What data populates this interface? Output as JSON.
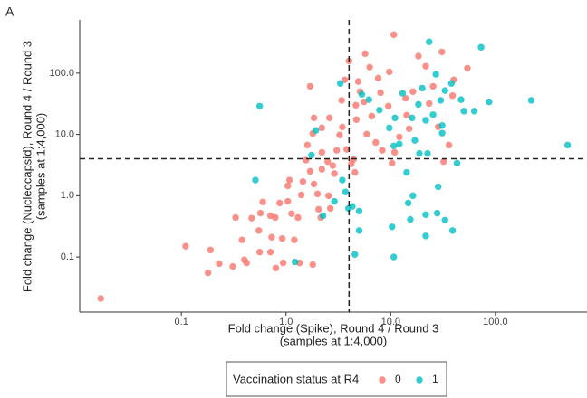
{
  "chart_data": {
    "type": "scatter",
    "panel_label": "A",
    "x_label": [
      "Fold change (Spike), Round 4 / Round 3",
      "(samples at 1:4,000)"
    ],
    "y_label": [
      "Fold change (Nucleocapsid), Round 4 / Round 3",
      "(samples at 1:4,000)"
    ],
    "log_x": true,
    "log_y": true,
    "xlim": [
      0.0107,
      750
    ],
    "ylim": [
      0.0126,
      740
    ],
    "xticks": [
      0.1,
      {
        "value": 1,
        "label": "1.0"
      },
      {
        "value": 10,
        "label": "10.0"
      },
      {
        "value": 100,
        "label": "100.0"
      }
    ],
    "yticks": [
      0.1,
      {
        "value": 1,
        "label": "1.0"
      },
      {
        "value": 10,
        "label": "10.0"
      },
      {
        "value": 100,
        "label": "100.0"
      }
    ],
    "x_ref_line": 4,
    "y_ref_line": 4,
    "legend_title": "Vaccination status at R4",
    "legend_position": "bottom",
    "series": [
      {
        "name": "0",
        "color": "#F8766D",
        "x": [
          0.017,
          0.11,
          0.19,
          0.18,
          0.23,
          0.31,
          0.38,
          0.4,
          0.42,
          0.33,
          0.47,
          0.55,
          0.57,
          0.6,
          0.56,
          0.73,
          0.8,
          0.94,
          0.71,
          0.71,
          0.79,
          0.87,
          0.92,
          1.04,
          1.08,
          1.04,
          1.13,
          1.2,
          1.3,
          1.4,
          1.45,
          1.35,
          1.8,
          1.55,
          1.7,
          1.85,
          2.0,
          2.05,
          2.15,
          2.2,
          1.6,
          1.8,
          1.85,
          1.7,
          2.2,
          2.2,
          2.5,
          2.8,
          2.9,
          2.55,
          2.65,
          3.05,
          3.25,
          3.4,
          3.65,
          3.45,
          3.8,
          4.2,
          4.4,
          4.55,
          4.65,
          5.1,
          5.55,
          4.7,
          5.9,
          6.6,
          7.2,
          7.6,
          9.5,
          10.7,
          9.7,
          10.9,
          12.1,
          13.9,
          15.0,
          16.3,
          18.4,
          21.6,
          23.3,
          25.4,
          28.4,
          30.8,
          32,
          36,
          39,
          40,
          54,
          10.3,
          8.3,
          6.3,
          5.7,
          4.0,
          4.9,
          2.6,
          8.0,
          14.2
        ],
        "values": [
          0.021,
          0.15,
          0.13,
          0.055,
          0.078,
          0.07,
          0.19,
          0.09,
          0.08,
          0.44,
          0.43,
          0.27,
          0.52,
          0.79,
          0.12,
          0.21,
          0.066,
          0.08,
          0.12,
          0.47,
          0.44,
          0.76,
          0.2,
          0.81,
          1.8,
          1.45,
          0.51,
          0.19,
          0.44,
          1.03,
          1.7,
          0.08,
          0.075,
          3.8,
          2.5,
          1.55,
          1.07,
          0.6,
          0.44,
          2.7,
          6.7,
          10.4,
          18.6,
          61,
          12.8,
          5.1,
          3.6,
          3.1,
          2.3,
          1.0,
          0.62,
          5.5,
          9.8,
          36,
          78,
          13.2,
          5.7,
          3.3,
          3.9,
          2.4,
          30,
          50,
          34,
          17.4,
          10.1,
          19.9,
          7.4,
          83,
          29,
          424,
          105,
          5.1,
          9.1,
          39,
          12.4,
          50,
          190,
          130,
          32,
          61,
          13.3,
          222,
          3.6,
          6.7,
          43,
          78,
          121,
          3.4,
          5.5,
          125,
          208,
          158,
          73,
          18.6,
          48,
          20.6
        ]
      },
      {
        "name": "1",
        "color": "#00BFC4",
        "x": [
          0.56,
          0.51,
          1.22,
          1.75,
          1.93,
          2.26,
          2.9,
          3.3,
          3.45,
          3.7,
          3.95,
          4.3,
          4.55,
          5.0,
          5.0,
          5.3,
          6.2,
          7.8,
          9.7,
          10.3,
          10.7,
          10.7,
          12.1,
          14.2,
          14.7,
          16.3,
          15.4,
          17,
          18.4,
          20,
          21.6,
          22.5,
          23.3,
          25.4,
          27.8,
          28.4,
          30,
          31,
          33,
          38,
          39,
          43,
          47,
          50,
          63,
          73,
          87,
          220,
          490,
          27,
          31,
          21.6,
          13,
          16,
          33,
          21.6,
          18.8,
          11
        ],
        "values": [
          29,
          1.8,
          0.083,
          4.6,
          11.6,
          0.47,
          0.81,
          68,
          1.8,
          1.15,
          0.62,
          0.67,
          0.11,
          0.27,
          0.56,
          45,
          37,
          25,
          12.8,
          0.31,
          0.1,
          6.5,
          7,
          2.4,
          0.76,
          1.0,
          0.41,
          8,
          31,
          57,
          0.22,
          4.9,
          325,
          21,
          0.52,
          1.4,
          36,
          10.5,
          52,
          68,
          0.27,
          3.4,
          37,
          24,
          24,
          265,
          34,
          36,
          6.7,
          96,
          14,
          17,
          47,
          18.6,
          0.4,
          0.49,
          4.9,
          18.6
        ]
      }
    ]
  }
}
